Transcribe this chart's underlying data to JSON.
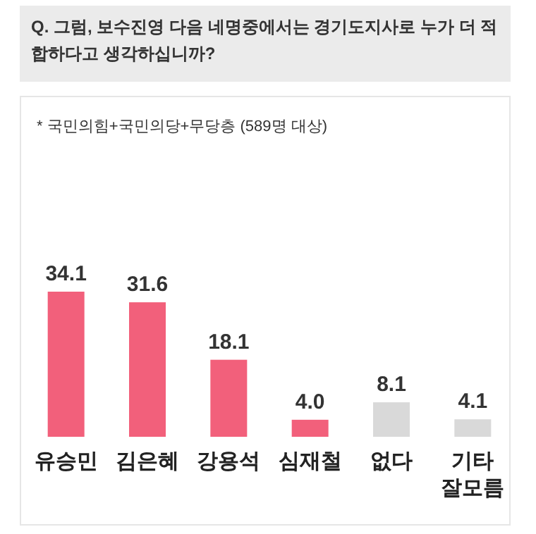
{
  "chart_data": {
    "type": "bar",
    "title": "Q. 그럼, 보수진영 다음 네명중에서는 경기도지사로 누가 더 적합하다고 생각하십니까?",
    "subtitle": "* 국민의힘+국민의당+무당층 (589명 대상)",
    "categories": [
      "유승민",
      "김은혜",
      "강용석",
      "심재철",
      "없다",
      "기타 잘모름"
    ],
    "values": [
      34.1,
      31.6,
      18.1,
      4.0,
      8.1,
      4.1
    ],
    "colors": [
      "#f2607b",
      "#f2607b",
      "#f2607b",
      "#f2607b",
      "#d9d9d9",
      "#d9d9d9"
    ],
    "value_labels": [
      "34.1",
      "31.6",
      "18.1",
      "4.0",
      "8.1",
      "4.1"
    ]
  }
}
